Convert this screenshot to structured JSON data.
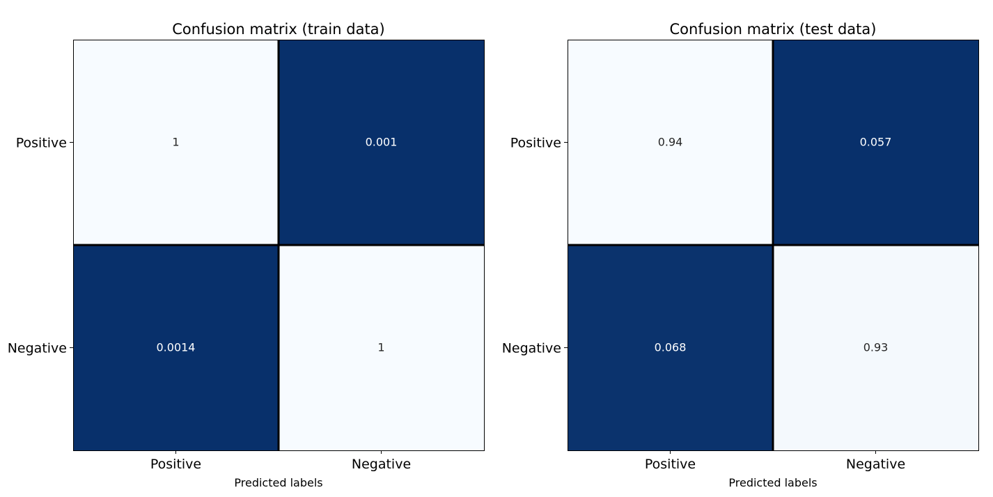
{
  "colors": {
    "low": "#f7fbff",
    "high": "#08306b",
    "text_on_low": "#262626",
    "text_on_high": "#ffffff",
    "grid": "#000000"
  },
  "chart_data": [
    {
      "type": "heatmap",
      "title": "Confusion matrix (train data)",
      "xlabel": "Predicted labels",
      "ylabel": "",
      "x_categories": [
        "Positive",
        "Negative"
      ],
      "y_categories": [
        "Positive",
        "Negative"
      ],
      "values": [
        [
          1,
          0.001
        ],
        [
          0.0014,
          1
        ]
      ],
      "annotations": [
        [
          "1",
          "0.001"
        ],
        [
          "0.0014",
          "1"
        ]
      ],
      "colormap": "Blues",
      "colorbar": false,
      "grid": true
    },
    {
      "type": "heatmap",
      "title": "Confusion matrix (test data)",
      "xlabel": "Predicted labels",
      "ylabel": "",
      "x_categories": [
        "Positive",
        "Negative"
      ],
      "y_categories": [
        "Positive",
        "Negative"
      ],
      "values": [
        [
          0.94,
          0.057
        ],
        [
          0.068,
          0.93
        ]
      ],
      "annotations": [
        [
          "0.94",
          "0.057"
        ],
        [
          "0.068",
          "0.93"
        ]
      ],
      "colormap": "Blues",
      "colorbar": false,
      "grid": true
    }
  ]
}
